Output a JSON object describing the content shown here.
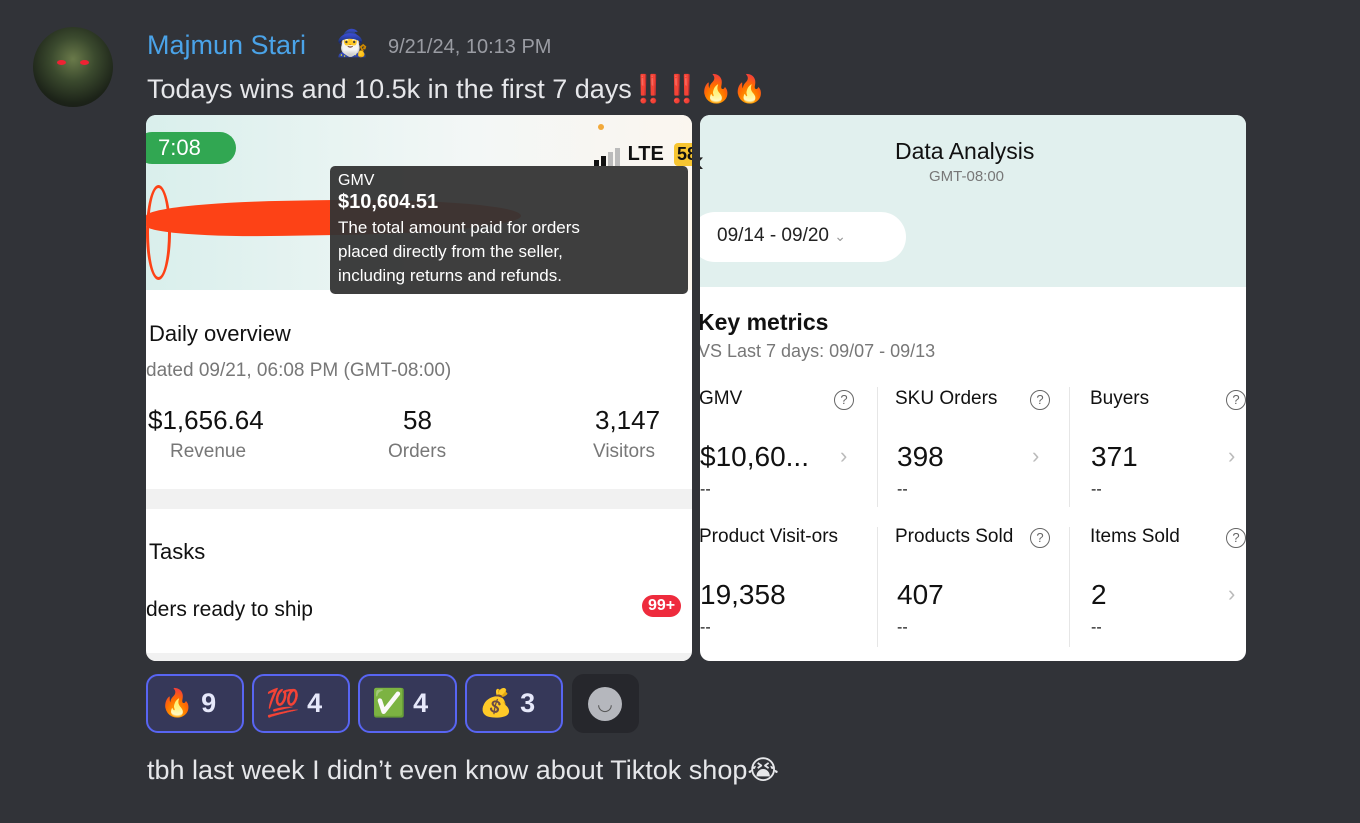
{
  "author": {
    "name": "Majmun Stari",
    "badge_emoji": "🧙‍♂️",
    "timestamp": "9/21/24, 10:13 PM"
  },
  "message1": {
    "text": "Todays wins and 10.5k in the first 7 days",
    "emoji": "‼️‼️🔥🔥"
  },
  "left_image": {
    "status_time": "7:08",
    "network": "LTE",
    "battery": "58",
    "title": "Daily overview",
    "updated": "dated 09/21, 06:08 PM (GMT-08:00)",
    "stats": [
      {
        "value": "$1,656.64",
        "label": "Revenue"
      },
      {
        "value": "58",
        "label": "Orders"
      },
      {
        "value": "3,147",
        "label": "Visitors"
      }
    ],
    "tasks_title": "Tasks",
    "task_item": "ders ready to ship",
    "task_badge": "99+"
  },
  "right_image": {
    "title": "Data Analysis",
    "timezone": "GMT-08:00",
    "date_range": "09/14 - 09/20",
    "section_title": "Key metrics",
    "comparison": "VS Last 7 days: 09/07 - 09/13",
    "metrics": [
      {
        "label": "GMV",
        "value": "$10,60...",
        "change": "--"
      },
      {
        "label": "SKU Orders",
        "value": "398",
        "change": "--"
      },
      {
        "label": "Buyers",
        "value": "371",
        "change": "--"
      },
      {
        "label": "Product Visit-ors",
        "value": "19,358",
        "change": "--"
      },
      {
        "label": "Products Sold",
        "value": "407",
        "change": "--"
      },
      {
        "label": "Items Sold",
        "value": "2",
        "change": "--"
      }
    ],
    "tooltip": {
      "title": "GMV",
      "value": "$10,604.51",
      "line1": "The total amount paid for orders",
      "line2": "placed directly from the seller,",
      "line3": "including returns and refunds."
    }
  },
  "reactions": [
    {
      "emoji": "🔥",
      "count": "9"
    },
    {
      "emoji": "💯",
      "count": "4"
    },
    {
      "emoji": "✅",
      "count": "4"
    },
    {
      "emoji": "💰",
      "count": "3"
    }
  ],
  "add_reaction_icon": "smiley-icon",
  "message2": {
    "text": "tbh last week I didn’t even know about Tiktok shop",
    "emoji": "😭"
  },
  "colors": {
    "background": "#313338",
    "username": "#4aa3e8",
    "reaction_border": "#5865f2"
  }
}
